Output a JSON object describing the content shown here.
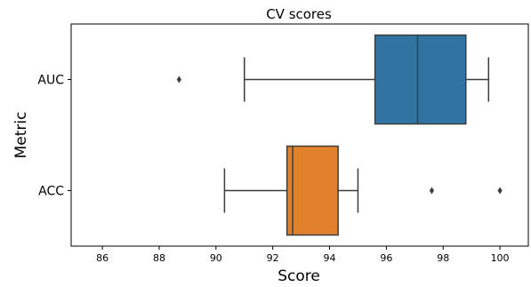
{
  "chart_data": {
    "type": "box",
    "orientation": "horizontal",
    "title": "CV scores",
    "xlabel": "Score",
    "ylabel": "Metric",
    "xlim": [
      84.9,
      101
    ],
    "xticks": [
      86,
      88,
      90,
      92,
      94,
      96,
      98,
      100
    ],
    "grid": false,
    "legend": "none",
    "boxes": [
      {
        "category": "AUC",
        "color": "#3274a1",
        "whisker_low": 91.0,
        "q1": 95.6,
        "median": 97.1,
        "q3": 98.8,
        "whisker_high": 99.6,
        "outliers": [
          88.7
        ]
      },
      {
        "category": "ACC",
        "color": "#e1812c",
        "whisker_low": 90.3,
        "q1": 92.5,
        "median": 92.7,
        "q3": 94.3,
        "whisker_high": 95.0,
        "outliers": [
          97.6,
          100.0
        ]
      }
    ]
  }
}
